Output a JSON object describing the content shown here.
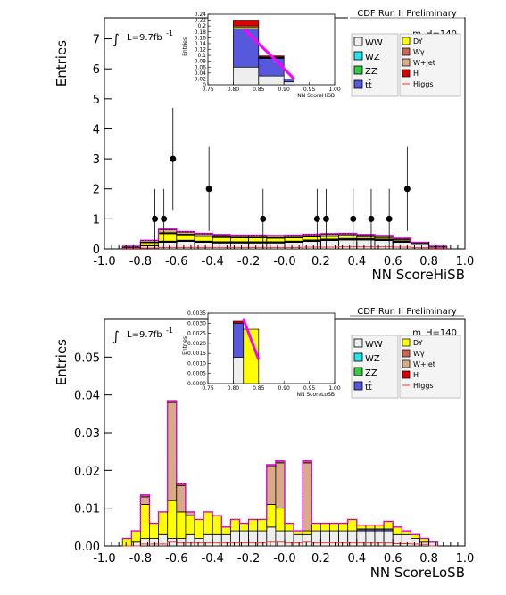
{
  "colors": {
    "WW": "#eeeeee",
    "WZ": "#22e6ee",
    "ZZ": "#33cc44",
    "tt": "#5858dd",
    "DY": "#ffff00",
    "Wg": "#cc6655",
    "Wjet": "#d8aa88",
    "H": "#dd0000",
    "Higgs": "#ff3333",
    "band": "#ff00ff"
  },
  "chart_data": [
    {
      "type": "bar",
      "title": "CDF Run II Preliminary",
      "mass_label": "m_H=140",
      "lumi_label": "L=9.7fb",
      "lumi_sup": "-1",
      "integral_sign": "∫",
      "xlabel": "NN ScoreHiSB",
      "ylabel": "Entries",
      "xlim": [
        -1.0,
        1.0
      ],
      "ylim": [
        0,
        7.7
      ],
      "xticks": [
        "-1.0",
        "-0.8",
        "-0.6",
        "-0.4",
        "-0.2",
        "-0.0",
        "0.2",
        "0.4",
        "0.6",
        "0.8",
        "1.0"
      ],
      "yticks": [
        "0",
        "1",
        "2",
        "3",
        "4",
        "5",
        "6",
        "7"
      ],
      "bin_edges": [
        -0.9,
        -0.8,
        -0.7,
        -0.6,
        -0.5,
        -0.4,
        -0.3,
        -0.2,
        -0.1,
        0.0,
        0.1,
        0.2,
        0.3,
        0.4,
        0.5,
        0.6,
        0.7,
        0.8,
        0.9
      ],
      "stack": [
        {
          "name": "WW",
          "values": [
            0.05,
            0.1,
            0.22,
            0.25,
            0.22,
            0.2,
            0.2,
            0.2,
            0.2,
            0.22,
            0.25,
            0.28,
            0.3,
            0.3,
            0.28,
            0.22,
            0.15,
            0.06
          ]
        },
        {
          "name": "WZ",
          "values": [
            0,
            0,
            0.01,
            0.01,
            0.01,
            0.01,
            0.01,
            0.01,
            0.01,
            0.01,
            0.01,
            0.01,
            0.01,
            0.01,
            0.01,
            0.01,
            0,
            0
          ]
        },
        {
          "name": "ZZ",
          "values": [
            0,
            0,
            0.01,
            0.01,
            0.01,
            0.01,
            0.01,
            0.01,
            0.01,
            0.01,
            0.01,
            0.01,
            0.01,
            0.01,
            0.01,
            0.01,
            0,
            0
          ]
        },
        {
          "name": "tt",
          "values": [
            0,
            0.01,
            0.02,
            0.02,
            0.02,
            0.02,
            0.02,
            0.02,
            0.02,
            0.02,
            0.03,
            0.03,
            0.03,
            0.03,
            0.03,
            0.02,
            0.02,
            0.01
          ]
        },
        {
          "name": "DY",
          "values": [
            0.03,
            0.1,
            0.25,
            0.18,
            0.16,
            0.14,
            0.13,
            0.13,
            0.12,
            0.11,
            0.1,
            0.09,
            0.08,
            0.06,
            0.05,
            0.04,
            0.02,
            0.01
          ]
        },
        {
          "name": "Wg",
          "values": [
            0,
            0.02,
            0.03,
            0.02,
            0.02,
            0.02,
            0.02,
            0.02,
            0.02,
            0.02,
            0.02,
            0.02,
            0.02,
            0.01,
            0.01,
            0.01,
            0,
            0
          ]
        },
        {
          "name": "Wjet",
          "values": [
            0.01,
            0.05,
            0.1,
            0.07,
            0.06,
            0.06,
            0.05,
            0.05,
            0.05,
            0.05,
            0.05,
            0.05,
            0.05,
            0.04,
            0.04,
            0.03,
            0.02,
            0.01
          ]
        },
        {
          "name": "H",
          "values": [
            0,
            0.01,
            0.02,
            0.02,
            0.02,
            0.02,
            0.02,
            0.02,
            0.02,
            0.02,
            0.02,
            0.02,
            0.02,
            0.02,
            0.02,
            0.02,
            0.01,
            0
          ]
        }
      ],
      "higgs_signal": [
        0.02,
        0.03,
        0.05,
        0.05,
        0.05,
        0.05,
        0.05,
        0.05,
        0.05,
        0.05,
        0.06,
        0.06,
        0.07,
        0.07,
        0.07,
        0.06,
        0.04,
        0.02
      ],
      "data_points": [
        {
          "x": -0.72,
          "y": 1,
          "err": 1
        },
        {
          "x": -0.67,
          "y": 1,
          "err": 1
        },
        {
          "x": -0.62,
          "y": 3,
          "err": 1.7
        },
        {
          "x": -0.42,
          "y": 2,
          "err": 1.4
        },
        {
          "x": -0.12,
          "y": 1,
          "err": 1
        },
        {
          "x": 0.18,
          "y": 1,
          "err": 1
        },
        {
          "x": 0.23,
          "y": 1,
          "err": 1
        },
        {
          "x": 0.38,
          "y": 1,
          "err": 1
        },
        {
          "x": 0.48,
          "y": 1,
          "err": 1
        },
        {
          "x": 0.58,
          "y": 1,
          "err": 1
        },
        {
          "x": 0.68,
          "y": 2,
          "err": 1.4
        }
      ],
      "inset": {
        "xlabel": "NN ScoreHiSB",
        "ylabel": "Entries",
        "xlim": [
          0.75,
          1.0
        ],
        "ylim": [
          0,
          0.24
        ],
        "xticks": [
          "0.75",
          "0.80",
          "0.85",
          "0.90",
          "0.95",
          "1.00"
        ],
        "yticks": [
          "0",
          "0.02",
          "0.04",
          "0.06",
          "0.08",
          "0.1",
          "0.12",
          "0.14",
          "0.16",
          "0.18",
          "0.2",
          "0.22",
          "0.24"
        ],
        "bins": [
          {
            "lo": 0.8,
            "hi": 0.85,
            "WW": 0.06,
            "tt": 0.13,
            "DY": 0.005,
            "Wjet": 0.005,
            "H": 0.02
          },
          {
            "lo": 0.85,
            "hi": 0.9,
            "WW": 0.03,
            "tt": 0.06,
            "DY": 0.002,
            "Wjet": 0.002,
            "H": 0.004
          },
          {
            "lo": 0.9,
            "hi": 0.92,
            "WW": 0.01,
            "tt": 0.01,
            "DY": 0,
            "Wjet": 0,
            "H": 0
          }
        ],
        "band": [
          [
            0.82,
            0.19
          ],
          [
            0.88,
            0.09
          ],
          [
            0.92,
            0.02
          ]
        ]
      }
    },
    {
      "type": "bar",
      "title": "CDF Run II Preliminary",
      "mass_label": "m_H=140",
      "lumi_label": "L=9.7fb",
      "lumi_sup": "-1",
      "integral_sign": "∫",
      "xlabel": "NN ScoreLoSB",
      "ylabel": "Entries",
      "xlim": [
        -1.0,
        1.0
      ],
      "ylim": [
        0,
        0.06
      ],
      "xticks": [
        "-1.0",
        "-0.8",
        "-0.6",
        "-0.4",
        "-0.2",
        "-0.0",
        "0.2",
        "0.4",
        "0.6",
        "0.8",
        "1.0"
      ],
      "yticks": [
        "0.00",
        "0.01",
        "0.02",
        "0.03",
        "0.04",
        "0.05"
      ],
      "bin_edges": [
        -0.9,
        -0.85,
        -0.8,
        -0.75,
        -0.7,
        -0.65,
        -0.6,
        -0.55,
        -0.5,
        -0.45,
        -0.4,
        -0.35,
        -0.3,
        -0.25,
        -0.2,
        -0.15,
        -0.1,
        -0.05,
        0.0,
        0.05,
        0.1,
        0.15,
        0.2,
        0.25,
        0.3,
        0.35,
        0.4,
        0.45,
        0.5,
        0.55,
        0.6,
        0.65,
        0.7,
        0.75,
        0.8,
        0.85
      ],
      "stack": [
        {
          "name": "WW",
          "values": [
            0,
            0.001,
            0.002,
            0.002,
            0.003,
            0.002,
            0.002,
            0.003,
            0.002,
            0.003,
            0.003,
            0.003,
            0.004,
            0.004,
            0.004,
            0.004,
            0.005,
            0.004,
            0.004,
            0.003,
            0.003,
            0.004,
            0.004,
            0.004,
            0.004,
            0.004,
            0.004,
            0.004,
            0.004,
            0.004,
            0.003,
            0.003,
            0.002,
            0.001,
            0.001
          ]
        },
        {
          "name": "tt",
          "values": [
            0,
            0,
            0,
            0,
            0,
            0,
            0,
            0,
            0,
            0,
            0,
            0,
            0,
            0,
            0,
            0,
            0,
            0,
            0,
            0,
            0,
            0,
            0,
            0,
            0,
            0,
            0.0005,
            0.0005,
            0.0005,
            0.0005,
            0,
            0,
            0,
            0,
            0
          ]
        },
        {
          "name": "DY",
          "values": [
            0.002,
            0.003,
            0.009,
            0.004,
            0.006,
            0.01,
            0.007,
            0.005,
            0.005,
            0.006,
            0.005,
            0.002,
            0.003,
            0.002,
            0.003,
            0.003,
            0.006,
            0.006,
            0.002,
            0.001,
            0.001,
            0.002,
            0.002,
            0.002,
            0.002,
            0.003,
            0.001,
            0.001,
            0.001,
            0.002,
            0.002,
            0.001,
            0.001,
            0.001,
            0
          ]
        },
        {
          "name": "Wjet",
          "values": [
            0,
            0,
            0.002,
            0,
            0,
            0.026,
            0.007,
            0.001,
            0,
            0,
            0,
            0,
            0,
            0,
            0,
            0,
            0.01,
            0.012,
            0,
            0,
            0.018,
            0,
            0,
            0,
            0,
            0,
            0,
            0,
            0,
            0,
            0,
            0,
            0,
            0,
            0
          ]
        },
        {
          "name": "Wg",
          "values": [
            0,
            0,
            0.0005,
            0,
            0,
            0.0005,
            0.0005,
            0,
            0,
            0,
            0,
            0,
            0,
            0,
            0,
            0,
            0.0005,
            0.0005,
            0,
            0,
            0.0005,
            0,
            0,
            0,
            0,
            0,
            0,
            0,
            0,
            0,
            0,
            0,
            0,
            0,
            0
          ]
        }
      ],
      "higgs_signal": [
        0,
        0,
        0.0005,
        0.0005,
        0.0005,
        0.001,
        0.0008,
        0.0008,
        0.0008,
        0.0008,
        0.0008,
        0.0008,
        0.0008,
        0.0008,
        0.0008,
        0.0008,
        0.001,
        0.001,
        0.0008,
        0.0008,
        0.001,
        0.0008,
        0.0008,
        0.0008,
        0.0008,
        0.0008,
        0.0008,
        0.0008,
        0.0008,
        0.0008,
        0.0006,
        0.0006,
        0.0005,
        0.0004,
        0
      ],
      "data_points": [],
      "inset": {
        "xlabel": "NN ScoreLoSB",
        "ylabel": "Entries",
        "xlim": [
          0.75,
          1.0
        ],
        "ylim": [
          0,
          0.0035
        ],
        "xticks": [
          "0.75",
          "0.80",
          "0.85",
          "0.90",
          "0.95",
          "1.00"
        ],
        "yticks": [
          "0.0000",
          "0.0005",
          "0.0010",
          "0.0015",
          "0.0020",
          "0.0025",
          "0.0030",
          "0.0035"
        ],
        "bins": [
          {
            "lo": 0.8,
            "hi": 0.82,
            "WW": 0.0013,
            "tt": 0.0017,
            "DY": 0.0,
            "Wjet": 0.0,
            "H": 0.0001
          },
          {
            "lo": 0.82,
            "hi": 0.85,
            "WW": 0.0,
            "tt": 0.0,
            "DY": 0.0027,
            "Wjet": 0.0,
            "H": 0.0
          },
          {
            "lo": 0.85,
            "hi": 0.88,
            "WW": 0.0,
            "tt": 0.0,
            "DY": 0.0,
            "Wjet": 0.0,
            "H": 0.0
          }
        ],
        "band": [
          [
            0.82,
            0.0032
          ],
          [
            0.85,
            0.0012
          ]
        ]
      }
    }
  ],
  "legend": {
    "left": [
      {
        "key": "WW",
        "label": "WW"
      },
      {
        "key": "WZ",
        "label": "WZ"
      },
      {
        "key": "ZZ",
        "label": "ZZ"
      },
      {
        "key": "tt",
        "label": "tt̄"
      }
    ],
    "right": [
      {
        "key": "DY",
        "label": "DY"
      },
      {
        "key": "Wg",
        "label": "Wγ"
      },
      {
        "key": "Wjet",
        "label": "W+jet"
      },
      {
        "key": "H",
        "label": "H"
      },
      {
        "key": "Higgs",
        "label": "Higgs"
      }
    ]
  }
}
